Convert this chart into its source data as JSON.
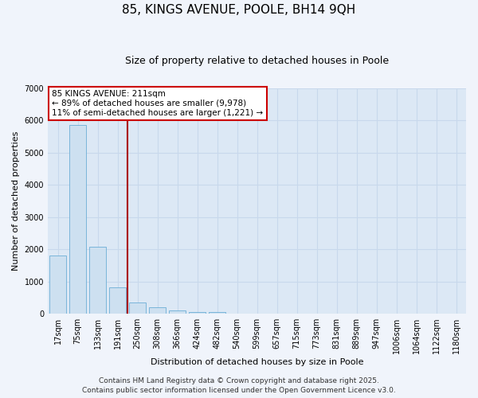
{
  "title": "85, KINGS AVENUE, POOLE, BH14 9QH",
  "subtitle": "Size of property relative to detached houses in Poole",
  "xlabel": "Distribution of detached houses by size in Poole",
  "ylabel": "Number of detached properties",
  "bar_labels": [
    "17sqm",
    "75sqm",
    "133sqm",
    "191sqm",
    "250sqm",
    "308sqm",
    "366sqm",
    "424sqm",
    "482sqm",
    "540sqm",
    "599sqm",
    "657sqm",
    "715sqm",
    "773sqm",
    "831sqm",
    "889sqm",
    "947sqm",
    "1006sqm",
    "1064sqm",
    "1122sqm",
    "1180sqm"
  ],
  "bar_values": [
    1800,
    5850,
    2080,
    820,
    340,
    200,
    100,
    60,
    50,
    0,
    0,
    0,
    0,
    0,
    0,
    0,
    0,
    0,
    0,
    0,
    0
  ],
  "bar_color": "#cde0f0",
  "bar_edge_color": "#6baed6",
  "plot_bg_color": "#dce8f5",
  "fig_bg_color": "#f0f4fb",
  "grid_color": "#c8d8ec",
  "ylim": [
    0,
    7000
  ],
  "yticks": [
    0,
    1000,
    2000,
    3000,
    4000,
    5000,
    6000,
    7000
  ],
  "vline_x": 3.5,
  "vline_color": "#aa0000",
  "annotation_text": "85 KINGS AVENUE: 211sqm\n← 89% of detached houses are smaller (9,978)\n11% of semi-detached houses are larger (1,221) →",
  "annotation_box_color": "#ffffff",
  "annotation_box_edge": "#cc0000",
  "footer_text": "Contains HM Land Registry data © Crown copyright and database right 2025.\nContains public sector information licensed under the Open Government Licence v3.0.",
  "title_fontsize": 11,
  "subtitle_fontsize": 9,
  "axis_label_fontsize": 8,
  "tick_fontsize": 7,
  "annotation_fontsize": 7.5,
  "footer_fontsize": 6.5
}
